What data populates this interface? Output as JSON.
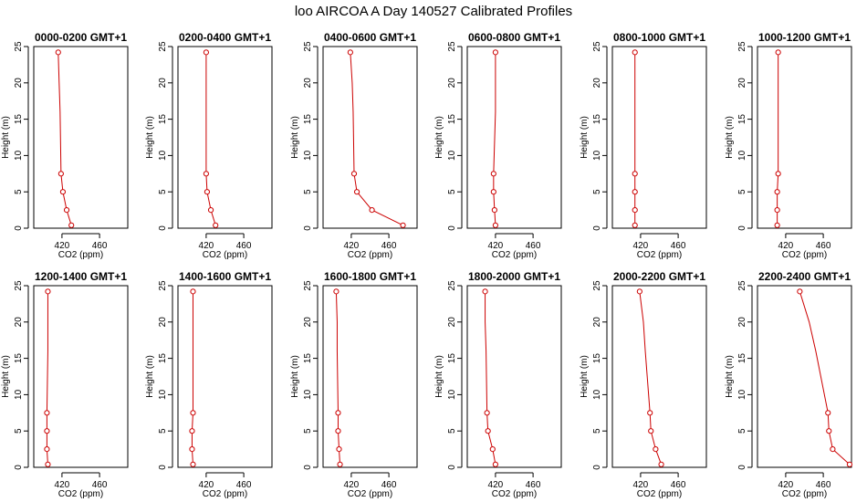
{
  "title": "loo AIRCOA A  Day 140527  Calibrated Profiles",
  "colors": {
    "series": "#cc0000",
    "axis": "#000000"
  },
  "chart_data": [
    {
      "type": "line",
      "title": "0000-0200 GMT+1",
      "xlabel": "CO2 (ppm)",
      "ylabel": "Height (m)",
      "xlim": [
        390,
        490
      ],
      "ylim": [
        0,
        25
      ],
      "xticks": [
        420,
        460
      ],
      "yticks": [
        0,
        5,
        10,
        15,
        20,
        25
      ],
      "x": [
        430,
        425,
        421,
        419,
        418,
        417,
        416
      ],
      "y": [
        0.4,
        2.5,
        5,
        7.5,
        16,
        20,
        24.2
      ]
    },
    {
      "type": "line",
      "title": "0200-0400 GMT+1",
      "xlabel": "CO2 (ppm)",
      "ylabel": "Height (m)",
      "xlim": [
        390,
        490
      ],
      "ylim": [
        0,
        25
      ],
      "xticks": [
        420,
        460
      ],
      "yticks": [
        0,
        5,
        10,
        15,
        20,
        25
      ],
      "x": [
        430,
        425,
        421,
        420,
        420,
        420,
        420
      ],
      "y": [
        0.4,
        2.5,
        5,
        7.5,
        16,
        20,
        24.2
      ]
    },
    {
      "type": "line",
      "title": "0400-0600 GMT+1",
      "xlabel": "CO2 (ppm)",
      "ylabel": "Height (m)",
      "xlim": [
        390,
        490
      ],
      "ylim": [
        0,
        25
      ],
      "xticks": [
        420,
        460
      ],
      "yticks": [
        0,
        5,
        10,
        15,
        20,
        25
      ],
      "x": [
        475,
        442,
        426,
        423,
        422,
        421,
        419
      ],
      "y": [
        0.4,
        2.5,
        5,
        7.5,
        16,
        20,
        24.2
      ]
    },
    {
      "type": "line",
      "title": "0600-0800 GMT+1",
      "xlabel": "CO2 (ppm)",
      "ylabel": "Height (m)",
      "xlim": [
        390,
        490
      ],
      "ylim": [
        0,
        25
      ],
      "xticks": [
        420,
        460
      ],
      "yticks": [
        0,
        5,
        10,
        15,
        20,
        25
      ],
      "x": [
        420,
        419,
        418,
        418,
        420,
        420,
        420
      ],
      "y": [
        0.4,
        2.5,
        5,
        7.5,
        16,
        20,
        24.2
      ]
    },
    {
      "type": "line",
      "title": "0800-1000 GMT+1",
      "xlabel": "CO2 (ppm)",
      "ylabel": "Height (m)",
      "xlim": [
        390,
        490
      ],
      "ylim": [
        0,
        25
      ],
      "xticks": [
        420,
        460
      ],
      "yticks": [
        0,
        5,
        10,
        15,
        20,
        25
      ],
      "x": [
        414,
        414,
        414,
        414,
        414,
        414,
        414
      ],
      "y": [
        0.4,
        2.5,
        5,
        7.5,
        16,
        20,
        24.2
      ]
    },
    {
      "type": "line",
      "title": "1000-1200 GMT+1",
      "xlabel": "CO2 (ppm)",
      "ylabel": "Height (m)",
      "xlim": [
        390,
        490
      ],
      "ylim": [
        0,
        25
      ],
      "xticks": [
        420,
        460
      ],
      "yticks": [
        0,
        5,
        10,
        15,
        20,
        25
      ],
      "x": [
        411,
        411,
        411,
        412,
        412,
        412,
        412
      ],
      "y": [
        0.4,
        2.5,
        5,
        7.5,
        16,
        20,
        24.2
      ]
    },
    {
      "type": "line",
      "title": "1200-1400 GMT+1",
      "xlabel": "CO2 (ppm)",
      "ylabel": "Height (m)",
      "xlim": [
        390,
        490
      ],
      "ylim": [
        0,
        25
      ],
      "xticks": [
        420,
        460
      ],
      "yticks": [
        0,
        5,
        10,
        15,
        20,
        25
      ],
      "x": [
        405,
        404,
        404,
        404,
        405,
        405,
        405
      ],
      "y": [
        0.4,
        2.5,
        5,
        7.5,
        16,
        20,
        24.2
      ]
    },
    {
      "type": "line",
      "title": "1400-1600 GMT+1",
      "xlabel": "CO2 (ppm)",
      "ylabel": "Height (m)",
      "xlim": [
        390,
        490
      ],
      "ylim": [
        0,
        25
      ],
      "xticks": [
        420,
        460
      ],
      "yticks": [
        0,
        5,
        10,
        15,
        20,
        25
      ],
      "x": [
        406,
        405,
        405,
        406,
        406,
        406,
        406
      ],
      "y": [
        0.4,
        2.5,
        5,
        7.5,
        16,
        20,
        24.2
      ]
    },
    {
      "type": "line",
      "title": "1600-1800 GMT+1",
      "xlabel": "CO2 (ppm)",
      "ylabel": "Height (m)",
      "xlim": [
        390,
        490
      ],
      "ylim": [
        0,
        25
      ],
      "xticks": [
        420,
        460
      ],
      "yticks": [
        0,
        5,
        10,
        15,
        20,
        25
      ],
      "x": [
        408,
        407,
        406,
        406,
        405,
        405,
        404
      ],
      "y": [
        0.4,
        2.5,
        5,
        7.5,
        16,
        20,
        24.2
      ]
    },
    {
      "type": "line",
      "title": "1800-2000 GMT+1",
      "xlabel": "CO2 (ppm)",
      "ylabel": "Height (m)",
      "xlim": [
        390,
        490
      ],
      "ylim": [
        0,
        25
      ],
      "xticks": [
        420,
        460
      ],
      "yticks": [
        0,
        5,
        10,
        15,
        20,
        25
      ],
      "x": [
        420,
        417,
        412,
        411,
        410,
        409,
        409
      ],
      "y": [
        0.4,
        2.5,
        5,
        7.5,
        16,
        20,
        24.2
      ]
    },
    {
      "type": "line",
      "title": "2000-2200 GMT+1",
      "xlabel": "CO2 (ppm)",
      "ylabel": "Height (m)",
      "xlim": [
        390,
        490
      ],
      "ylim": [
        0,
        25
      ],
      "xticks": [
        420,
        460
      ],
      "yticks": [
        0,
        5,
        10,
        15,
        20,
        25
      ],
      "x": [
        442,
        436,
        431,
        430,
        425,
        423,
        419
      ],
      "y": [
        0.4,
        2.5,
        5,
        7.5,
        16,
        20,
        24.2
      ]
    },
    {
      "type": "line",
      "title": "2200-2400 GMT+1",
      "xlabel": "CO2 (ppm)",
      "ylabel": "Height (m)",
      "xlim": [
        390,
        490
      ],
      "ylim": [
        0,
        25
      ],
      "xticks": [
        420,
        460
      ],
      "yticks": [
        0,
        5,
        10,
        15,
        20,
        25
      ],
      "x": [
        488,
        470,
        466,
        465,
        452,
        445,
        435
      ],
      "y": [
        0.4,
        2.5,
        5,
        7.5,
        16,
        20,
        24.2
      ]
    }
  ]
}
